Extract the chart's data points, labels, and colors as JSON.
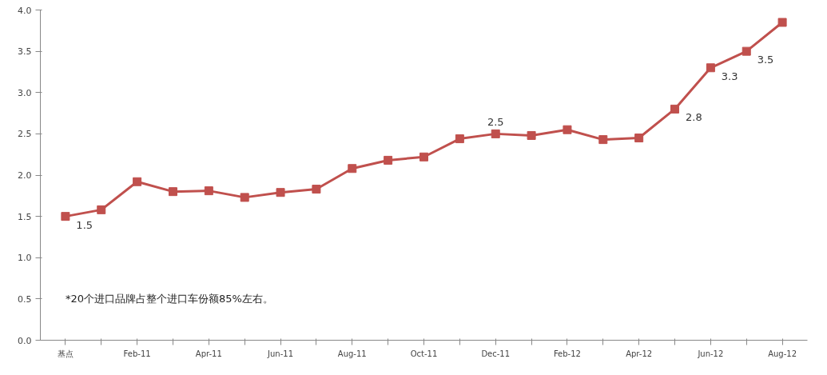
{
  "chart_data": {
    "type": "line",
    "categories": [
      "基点",
      null,
      "Feb-11",
      null,
      "Apr-11",
      null,
      "Jun-11",
      null,
      "Aug-11",
      null,
      "Oct-11",
      null,
      "Dec-11",
      null,
      "Feb-12",
      null,
      "Apr-12",
      null,
      "Jun-12",
      null,
      "Aug-12"
    ],
    "series": [
      {
        "color": "#c0504d",
        "values": [
          1.5,
          1.58,
          1.92,
          1.8,
          1.81,
          1.73,
          1.79,
          1.83,
          2.08,
          2.18,
          2.22,
          2.44,
          2.5,
          2.48,
          2.55,
          2.43,
          2.45,
          2.8,
          3.3,
          3.5,
          3.85
        ],
        "value_labels": [
          "1.5",
          null,
          null,
          null,
          null,
          null,
          null,
          null,
          null,
          null,
          null,
          null,
          "2.5",
          null,
          null,
          null,
          null,
          "2.8",
          "3.3",
          "3.5",
          null
        ]
      }
    ],
    "ylim": [
      0,
      4
    ],
    "yticks": [
      {
        "value": 0,
        "label": "0.0"
      },
      {
        "value": 0.5,
        "label": "0.5"
      },
      {
        "value": 1,
        "label": "1.0"
      },
      {
        "value": 1.5,
        "label": "1.5"
      },
      {
        "value": 2,
        "label": "2.0"
      },
      {
        "value": 2.5,
        "label": "2.5"
      },
      {
        "value": 3,
        "label": "3.0"
      },
      {
        "value": 3.5,
        "label": "3.5"
      },
      {
        "value": 4,
        "label": "4.0"
      }
    ],
    "marker": "square",
    "grid": false,
    "annotations": [
      "*20个进口品牌占整个进口车份额85%左右。"
    ]
  }
}
